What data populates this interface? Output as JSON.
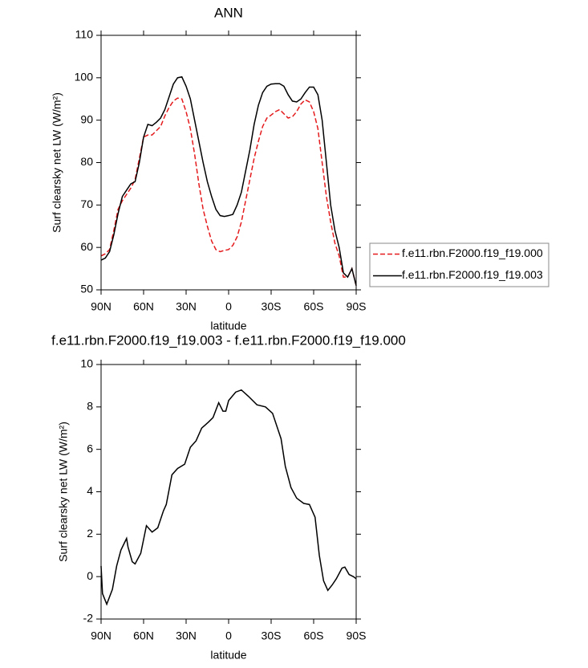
{
  "chart_data": [
    {
      "type": "line",
      "title": "ANN",
      "xlabel": "latitude",
      "ylabel": "Surf clearsky net LW (W/m²)",
      "x": [
        90,
        87,
        84,
        81,
        78,
        75,
        72,
        69,
        66,
        63,
        60,
        57,
        54,
        51,
        48,
        45,
        42,
        39,
        36,
        33,
        30,
        27,
        24,
        21,
        18,
        15,
        12,
        9,
        6,
        3,
        0,
        -3,
        -6,
        -9,
        -12,
        -15,
        -18,
        -21,
        -24,
        -27,
        -30,
        -33,
        -36,
        -39,
        -42,
        -45,
        -48,
        -51,
        -54,
        -57,
        -60,
        -63,
        -66,
        -69,
        -72,
        -75,
        -78,
        -81,
        -84,
        -87,
        -90
      ],
      "series": [
        {
          "name": "f.e11.rbn.F2000.f19_f19.000",
          "color": "#e41a1c",
          "line_style": "dashed",
          "values": [
            58,
            58.5,
            59.5,
            64,
            69,
            71,
            72.5,
            74,
            76,
            81,
            86,
            86.5,
            86.5,
            87.5,
            88.5,
            91,
            93,
            94.5,
            95.2,
            95,
            92,
            88,
            82,
            75,
            69,
            65,
            61.5,
            59.5,
            59,
            59.3,
            59.5,
            60.5,
            62.5,
            66,
            71,
            76,
            81,
            85,
            88.5,
            90.5,
            91.2,
            92,
            92.5,
            91.5,
            90.5,
            90.8,
            92,
            93.8,
            94.8,
            94.3,
            92,
            88,
            80,
            72,
            66,
            61,
            58,
            53,
            53,
            55,
            51
          ]
        },
        {
          "name": "f.e11.rbn.F2000.f19_f19.003",
          "color": "#000000",
          "line_style": "solid",
          "values": [
            57,
            57.5,
            59,
            63,
            68,
            72,
            73.5,
            75,
            75.5,
            80,
            86,
            89,
            88.7,
            89.5,
            90.5,
            92.5,
            95.5,
            98.5,
            100,
            100.2,
            98,
            95,
            90,
            85,
            80,
            75.5,
            72,
            69,
            67.5,
            67.3,
            67.5,
            67.8,
            70,
            73,
            78,
            83,
            89,
            93.5,
            96.5,
            98,
            98.5,
            98.6,
            98.6,
            98,
            96,
            94.5,
            94.3,
            95,
            96.5,
            97.8,
            97.8,
            96,
            90,
            80,
            70,
            64,
            60,
            54,
            53,
            55,
            51
          ]
        }
      ],
      "xlim": [
        90,
        -90
      ],
      "xticks": [
        {
          "value": 90,
          "label": "90N"
        },
        {
          "value": 60,
          "label": "60N"
        },
        {
          "value": 30,
          "label": "30N"
        },
        0,
        {
          "value": -30,
          "label": "30S"
        },
        {
          "value": -60,
          "label": "60S"
        },
        {
          "value": -90,
          "label": "90S"
        }
      ],
      "ylim": [
        50,
        110
      ],
      "yticks": [
        50,
        60,
        70,
        80,
        90,
        100,
        110
      ],
      "legend": "right"
    },
    {
      "type": "line",
      "title": "f.e11.rbn.F2000.f19_f19.003 - f.e11.rbn.F2000.f19_f19.000",
      "xlabel": "latitude",
      "ylabel": "Surf clearsky net LW (W/m²)",
      "x": [
        90,
        89,
        86,
        82,
        79,
        76,
        72,
        71,
        68,
        66,
        62,
        58,
        54,
        50,
        46,
        44,
        40,
        36,
        31,
        27,
        23,
        19,
        14,
        11,
        7,
        4,
        2,
        0,
        -5,
        -9,
        -14,
        -20,
        -26,
        -31,
        -37,
        -40,
        -44,
        -48,
        -53,
        -57,
        -61,
        -64,
        -67,
        -70,
        -73,
        -76,
        -80,
        -82,
        -85,
        -88,
        -90
      ],
      "values": [
        0.5,
        -0.8,
        -1.3,
        -0.6,
        0.5,
        1.25,
        1.8,
        1.4,
        0.7,
        0.6,
        1.1,
        2.4,
        2.1,
        2.3,
        3.1,
        3.4,
        4.8,
        5.1,
        5.3,
        6.1,
        6.4,
        7.0,
        7.3,
        7.5,
        8.2,
        7.8,
        7.8,
        8.3,
        8.7,
        8.8,
        8.5,
        8.1,
        8.0,
        7.7,
        6.5,
        5.2,
        4.2,
        3.7,
        3.45,
        3.4,
        2.8,
        1.0,
        -0.2,
        -0.65,
        -0.4,
        -0.1,
        0.4,
        0.45,
        0.1,
        0.0,
        -0.1
      ],
      "color": "#000000",
      "xlim": [
        90,
        -90
      ],
      "xticks": [
        {
          "value": 90,
          "label": "90N"
        },
        {
          "value": 60,
          "label": "60N"
        },
        {
          "value": 30,
          "label": "30N"
        },
        0,
        {
          "value": -30,
          "label": "30S"
        },
        {
          "value": -60,
          "label": "60S"
        },
        {
          "value": -90,
          "label": "90S"
        }
      ],
      "ylim": [
        -2,
        10
      ],
      "yticks": [
        -2,
        0,
        2,
        4,
        6,
        8,
        10
      ]
    }
  ]
}
